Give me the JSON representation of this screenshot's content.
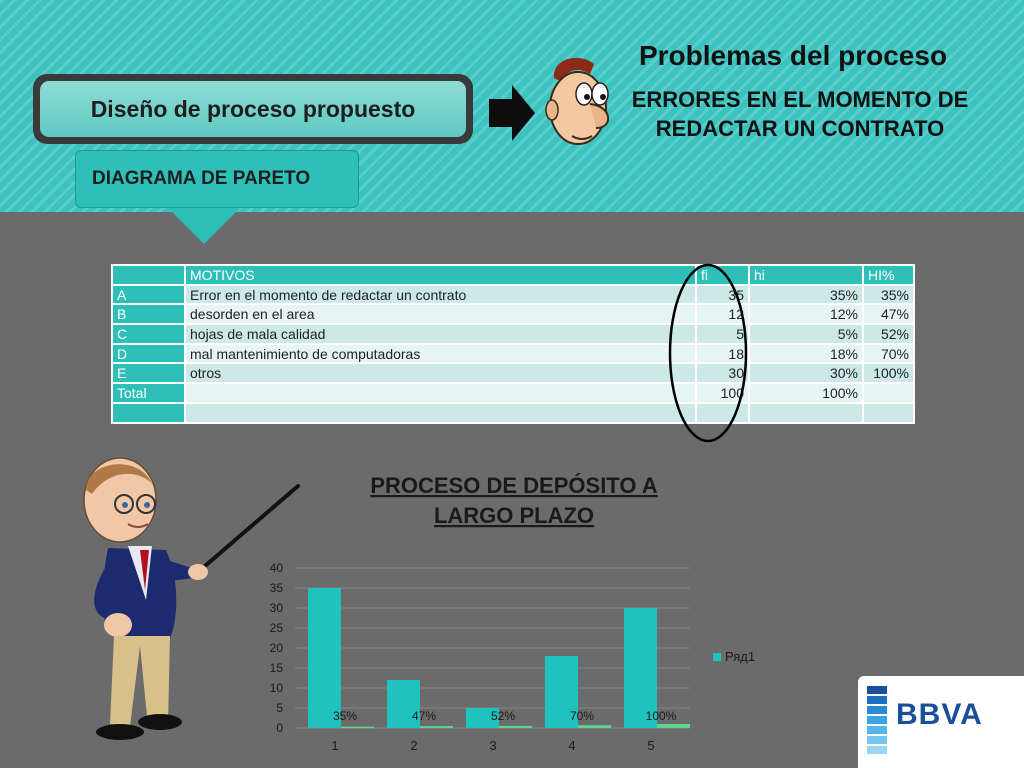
{
  "header": {
    "title_box_label": "Diseño de proceso propuesto",
    "pareto_tab_label": "DIAGRAMA DE PARETO",
    "heading": "Problemas del proceso",
    "subheading_line1": "ERRORES EN EL MOMENTO DE",
    "subheading_line2": "REDACTAR UN CONTRATO"
  },
  "table": {
    "headers": [
      "",
      "MOTIVOS",
      "fi",
      "hi",
      "HI%"
    ],
    "rows": [
      {
        "key": "A",
        "motivo": "Error en el momento de redactar un contrato",
        "fi": "35",
        "hi": "35%",
        "Hi": "35%"
      },
      {
        "key": "B",
        "motivo": "desorden en el area",
        "fi": "12",
        "hi": "12%",
        "Hi": "47%"
      },
      {
        "key": "C",
        "motivo": "hojas de mala calidad",
        "fi": "5",
        "hi": "5%",
        "Hi": "52%"
      },
      {
        "key": "D",
        "motivo": "mal mantenimiento de computadoras",
        "fi": "18",
        "hi": "18%",
        "Hi": "70%"
      },
      {
        "key": "E",
        "motivo": "otros",
        "fi": "30",
        "hi": "30%",
        "Hi": "100%"
      },
      {
        "key": "Total",
        "motivo": "",
        "fi": "100",
        "hi": "100%",
        "Hi": ""
      },
      {
        "key": "",
        "motivo": "",
        "fi": "",
        "hi": "",
        "Hi": ""
      }
    ]
  },
  "chart_data": {
    "type": "bar",
    "title": "PROCESO DE DEPÓSITO A LARGO PLAZO",
    "title_line1": "PROCESO DE DEPÓSITO A",
    "title_line2": "LARGO PLAZO",
    "categories": [
      "1",
      "2",
      "3",
      "4",
      "5"
    ],
    "series": [
      {
        "name": "Ряд1",
        "values": [
          35,
          12,
          5,
          18,
          30
        ],
        "color": "#1fc2bd"
      },
      {
        "values": [
          0.35,
          0.47,
          0.52,
          0.7,
          1.0
        ],
        "labels": [
          "35%",
          "47%",
          "52%",
          "70%",
          "100%"
        ],
        "color": "#5fd48f"
      }
    ],
    "ylim": [
      0,
      40
    ],
    "yticks": [
      "0",
      "5",
      "10",
      "15",
      "20",
      "25",
      "30",
      "35",
      "40"
    ],
    "grid": true,
    "legend": "right"
  },
  "logo": {
    "text": "BBVA"
  },
  "colors": {
    "teal": "#3cc3c0",
    "background": "#6b6b6b",
    "bar": "#1fc2bd",
    "logo": "#1a4f9c"
  }
}
